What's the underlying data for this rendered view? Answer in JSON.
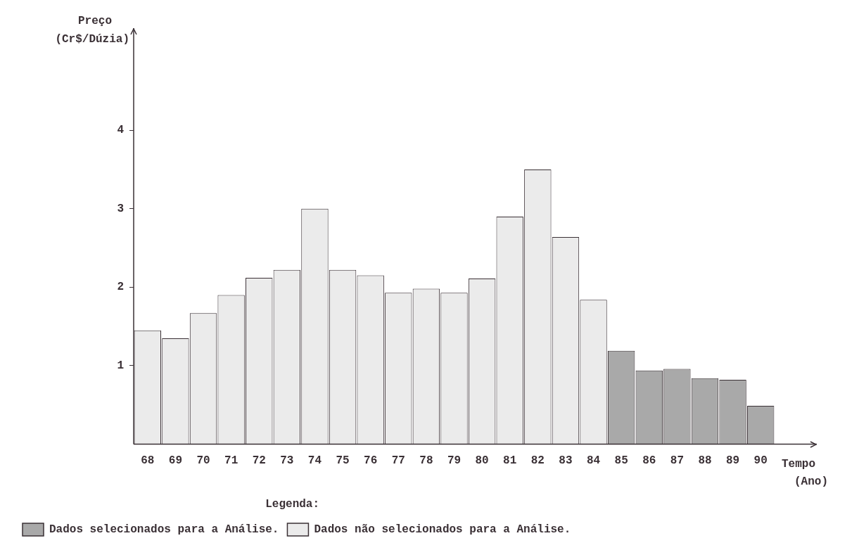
{
  "chart_data": {
    "type": "bar",
    "ylabel": "Preço (Cr$/Dúzia)",
    "xlabel": "Tempo (Ano)",
    "legend_title": "Legenda:",
    "categories": [
      "68",
      "69",
      "70",
      "71",
      "72",
      "73",
      "74",
      "75",
      "76",
      "77",
      "78",
      "79",
      "80",
      "81",
      "82",
      "83",
      "84",
      "85",
      "86",
      "87",
      "88",
      "89",
      "90"
    ],
    "series": [
      {
        "name": "Dados selecionados para a Análise.",
        "color": "#a9a9a9",
        "values": [
          null,
          null,
          null,
          null,
          null,
          null,
          null,
          null,
          null,
          null,
          null,
          null,
          null,
          null,
          null,
          null,
          null,
          1.19,
          0.94,
          0.96,
          0.84,
          0.82,
          0.49
        ]
      },
      {
        "name": "Dados não selecionados para a Análise.",
        "color": "#ebebeb",
        "values": [
          1.45,
          1.35,
          1.67,
          1.9,
          2.12,
          2.22,
          3.0,
          2.22,
          2.15,
          1.93,
          1.98,
          1.93,
          2.11,
          2.9,
          3.5,
          2.64,
          1.84,
          null,
          null,
          null,
          null,
          null,
          null
        ]
      }
    ],
    "ylim": [
      0,
      5.3
    ],
    "yticks": [
      1,
      2,
      3,
      4
    ],
    "grid": false,
    "legend": "bottom left"
  }
}
